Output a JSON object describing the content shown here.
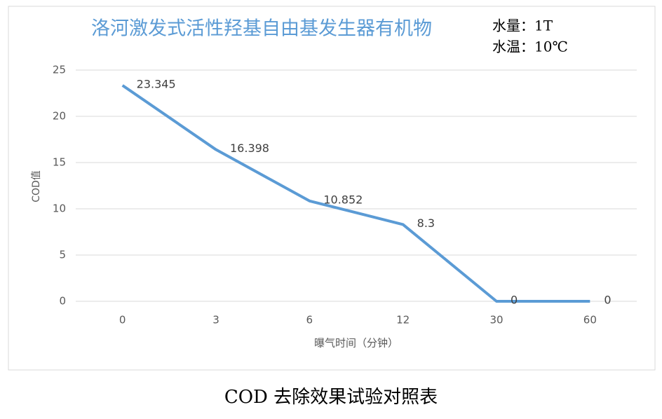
{
  "chart_data": {
    "type": "line",
    "title": "洛河激发式活性羟基自由基发生器有机物",
    "annotations": [
      "水量：1T",
      "水温：10℃"
    ],
    "x_label": "曝气时间（分钟）",
    "y_label": "COD值",
    "categories": [
      "0",
      "3",
      "6",
      "12",
      "30",
      "60"
    ],
    "series": [
      {
        "name": "COD值",
        "color": "#5b9bd5",
        "values": [
          23.345,
          16.398,
          10.852,
          8.3,
          0,
          0
        ]
      }
    ],
    "ylim": [
      0,
      25
    ],
    "yticks": [
      0,
      5,
      10,
      15,
      20,
      25
    ],
    "grid": true
  },
  "caption": "COD 去除效果试验对照表"
}
